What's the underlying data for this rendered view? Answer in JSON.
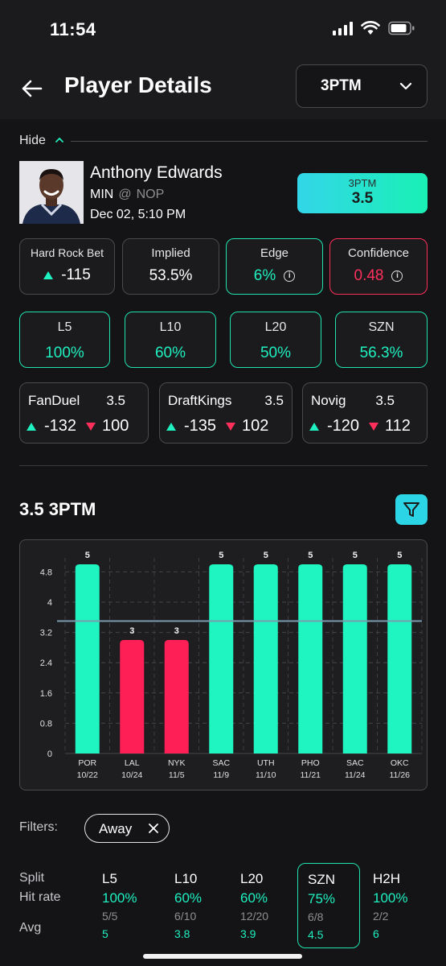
{
  "status_bar": {
    "time": "11:54"
  },
  "header": {
    "title": "Player Details",
    "stat_select": "3PTM"
  },
  "hide_label": "Hide",
  "player": {
    "name": "Anthony Edwards",
    "team": "MIN",
    "at": "@",
    "opponent": "NOP",
    "game_time": "Dec 02, 5:10 PM"
  },
  "line_chip": {
    "label": "3PTM",
    "value": "3.5"
  },
  "stats": {
    "book": {
      "title": "Hard Rock Bet",
      "value": "-115"
    },
    "implied": {
      "title": "Implied",
      "value": "53.5%"
    },
    "edge": {
      "title": "Edge",
      "value": "6%"
    },
    "confidence": {
      "title": "Confidence",
      "value": "0.48"
    }
  },
  "hit_rates": [
    {
      "label": "L5",
      "value": "100%"
    },
    {
      "label": "L10",
      "value": "60%"
    },
    {
      "label": "L20",
      "value": "50%"
    },
    {
      "label": "SZN",
      "value": "56.3%"
    }
  ],
  "books": [
    {
      "name": "FanDuel",
      "line": "3.5",
      "over": "-132",
      "under": "100"
    },
    {
      "name": "DraftKings",
      "line": "3.5",
      "over": "-135",
      "under": "102"
    },
    {
      "name": "Novig",
      "line": "3.5",
      "over": "-120",
      "under": "112"
    }
  ],
  "chart_title": "3.5 3PTM",
  "chart_data": {
    "type": "bar",
    "categories": [
      "POR",
      "LAL",
      "NYK",
      "SAC",
      "UTH",
      "PHO",
      "SAC",
      "OKC"
    ],
    "dates": [
      "10/22",
      "10/24",
      "11/5",
      "11/9",
      "11/10",
      "11/21",
      "11/24",
      "11/26"
    ],
    "values": [
      5,
      3,
      3,
      5,
      5,
      5,
      5,
      5
    ],
    "data_labels": [
      "5",
      "3",
      "3",
      "5",
      "5",
      "5",
      "5",
      "5"
    ],
    "line_value": 3.5,
    "yticks": [
      "0",
      "0.8",
      "1.6",
      "2.4",
      "3.2",
      "4",
      "4.8"
    ],
    "ylim": [
      0,
      5
    ],
    "hit_color": "#1ff5c0",
    "miss_color": "#ff1f57",
    "grid": true
  },
  "filters": {
    "label": "Filters:",
    "chips": [
      "Away"
    ]
  },
  "splits": {
    "row_labels": {
      "split": "Split",
      "hit_rate": "Hit rate",
      "avg": "Avg"
    },
    "columns": [
      {
        "label": "L5",
        "rate": "100%",
        "fraction": "5/5",
        "avg": "5",
        "selected": false
      },
      {
        "label": "L10",
        "rate": "60%",
        "fraction": "6/10",
        "avg": "3.8",
        "selected": false
      },
      {
        "label": "L20",
        "rate": "60%",
        "fraction": "12/20",
        "avg": "3.9",
        "selected": false
      },
      {
        "label": "SZN",
        "rate": "75%",
        "fraction": "6/8",
        "avg": "4.5",
        "selected": true
      },
      {
        "label": "H2H",
        "rate": "100%",
        "fraction": "2/2",
        "avg": "6",
        "selected": false
      }
    ]
  }
}
